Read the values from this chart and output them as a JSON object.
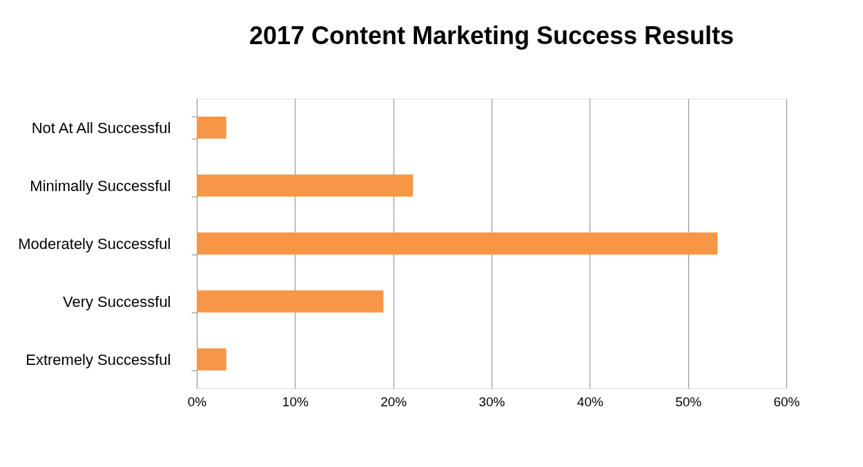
{
  "chart_data": {
    "type": "bar",
    "orientation": "horizontal",
    "title": "2017 Content Marketing Success Results",
    "categories": [
      "Not At All Successful",
      "Minimally Successful",
      "Moderately Successful",
      "Very Successful",
      "Extremely Successful"
    ],
    "values": [
      3,
      22,
      53,
      19,
      3
    ],
    "color": "#f79646",
    "xlim": [
      0,
      60
    ],
    "xticks": [
      {
        "value": 0,
        "label": "0%"
      },
      {
        "value": 10,
        "label": "10%"
      },
      {
        "value": 20,
        "label": "20%"
      },
      {
        "value": 30,
        "label": "30%"
      },
      {
        "value": 40,
        "label": "40%"
      },
      {
        "value": 50,
        "label": "50%"
      },
      {
        "value": 60,
        "label": "60%"
      }
    ],
    "grid": "x"
  }
}
